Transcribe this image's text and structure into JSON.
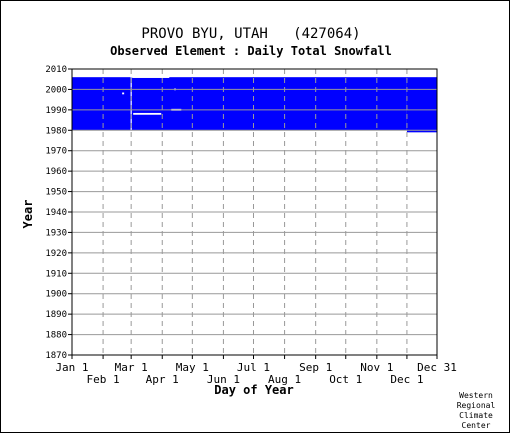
{
  "chart_data": {
    "type": "heatmap",
    "title": "PROVO BYU, UTAH   (427064)",
    "subtitle": "Observed Element : Daily Total Snowfall",
    "xlabel": "Day of Year",
    "ylabel": "Year",
    "x_ticks_top_row": [
      "Jan 1",
      "Mar 1",
      "May 1",
      "Jul 1",
      "Sep 1",
      "Nov 1",
      "Dec 31"
    ],
    "x_ticks_bottom_row": [
      "Feb 1",
      "Apr 1",
      "Jun 1",
      "Aug 1",
      "Oct 1",
      "Dec 1"
    ],
    "x_tick_days_top": [
      1,
      60,
      121,
      182,
      244,
      305,
      365
    ],
    "x_tick_days_bottom": [
      32,
      91,
      152,
      213,
      274,
      335
    ],
    "xlim": [
      1,
      365
    ],
    "ylim": [
      1870,
      2010
    ],
    "y_ticks": [
      1870,
      1880,
      1890,
      1900,
      1910,
      1920,
      1930,
      1940,
      1950,
      1960,
      1970,
      1980,
      1990,
      2000,
      2010
    ],
    "data_color": "#0000ff",
    "grid": true,
    "records": [
      {
        "start_year": 1980,
        "end_year": 2005,
        "start_day": 1,
        "end_day": 335
      },
      {
        "start_year": 1979,
        "end_year": 2005,
        "start_day": 335,
        "end_day": 365
      }
    ],
    "gaps": [
      {
        "start_year": 1980,
        "end_year": 2006,
        "day": 60
      },
      {
        "start_year": 1988,
        "end_year": 1988,
        "start_day": 62,
        "end_day": 90
      },
      {
        "start_year": 1990,
        "end_year": 1990,
        "start_day": 100,
        "end_day": 110
      },
      {
        "start_year": 1998,
        "end_year": 1998,
        "start_day": 51,
        "end_day": 53
      },
      {
        "start_year": 2000,
        "end_year": 2000,
        "start_day": 103,
        "end_day": 104
      },
      {
        "start_year": 2006,
        "end_year": 2006,
        "start_day": 61,
        "end_day": 98
      }
    ]
  },
  "credit": [
    "Western",
    "Regional",
    "Climate",
    "Center"
  ]
}
